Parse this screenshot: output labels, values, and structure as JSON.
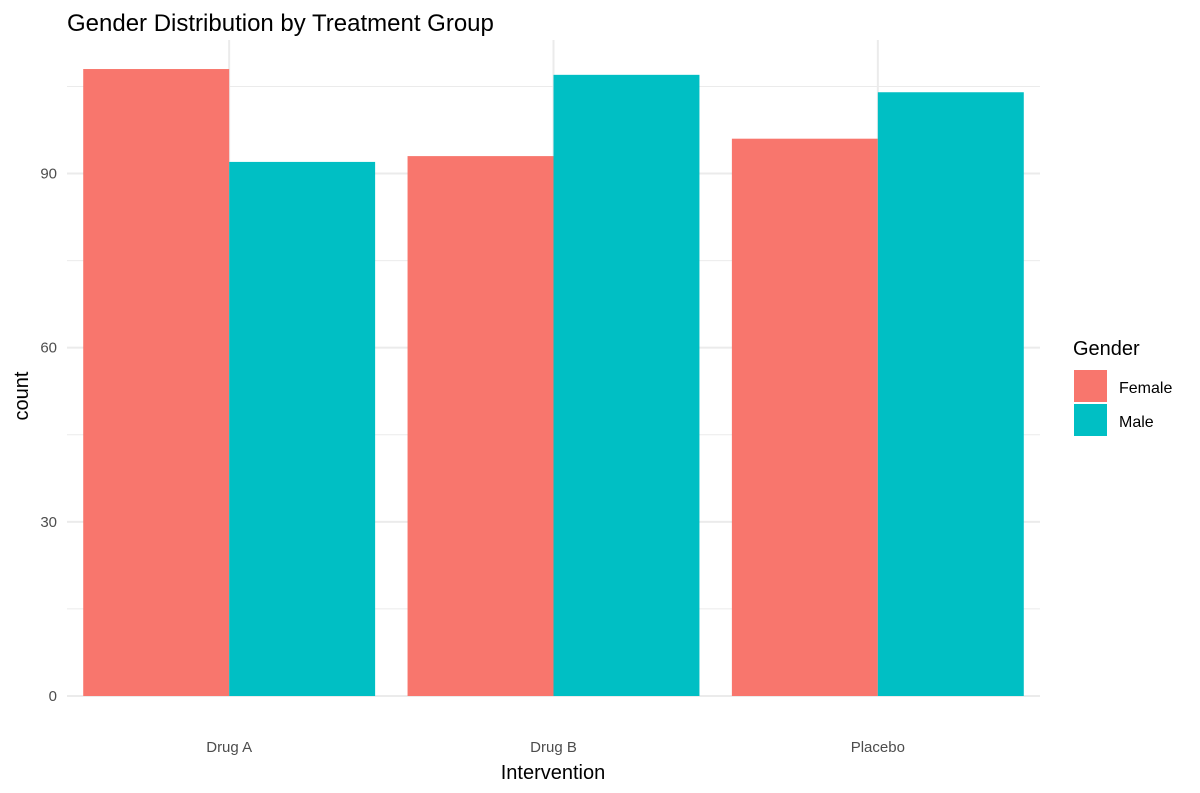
{
  "chart_data": {
    "type": "bar",
    "title": "Gender Distribution by Treatment Group",
    "xlabel": "Intervention",
    "ylabel": "count",
    "categories": [
      "Drug A",
      "Drug B",
      "Placebo"
    ],
    "series": [
      {
        "name": "Female",
        "color": "#F8766D",
        "values": [
          108,
          93,
          96
        ]
      },
      {
        "name": "Male",
        "color": "#00BFC4",
        "values": [
          92,
          107,
          104
        ]
      }
    ],
    "ylim": [
      0,
      113
    ],
    "yticks": [
      0,
      30,
      60,
      90
    ],
    "yticks_minor": [
      15,
      45,
      75,
      105
    ],
    "grid": true,
    "legend": {
      "title": "Gender",
      "placement": "right"
    }
  }
}
